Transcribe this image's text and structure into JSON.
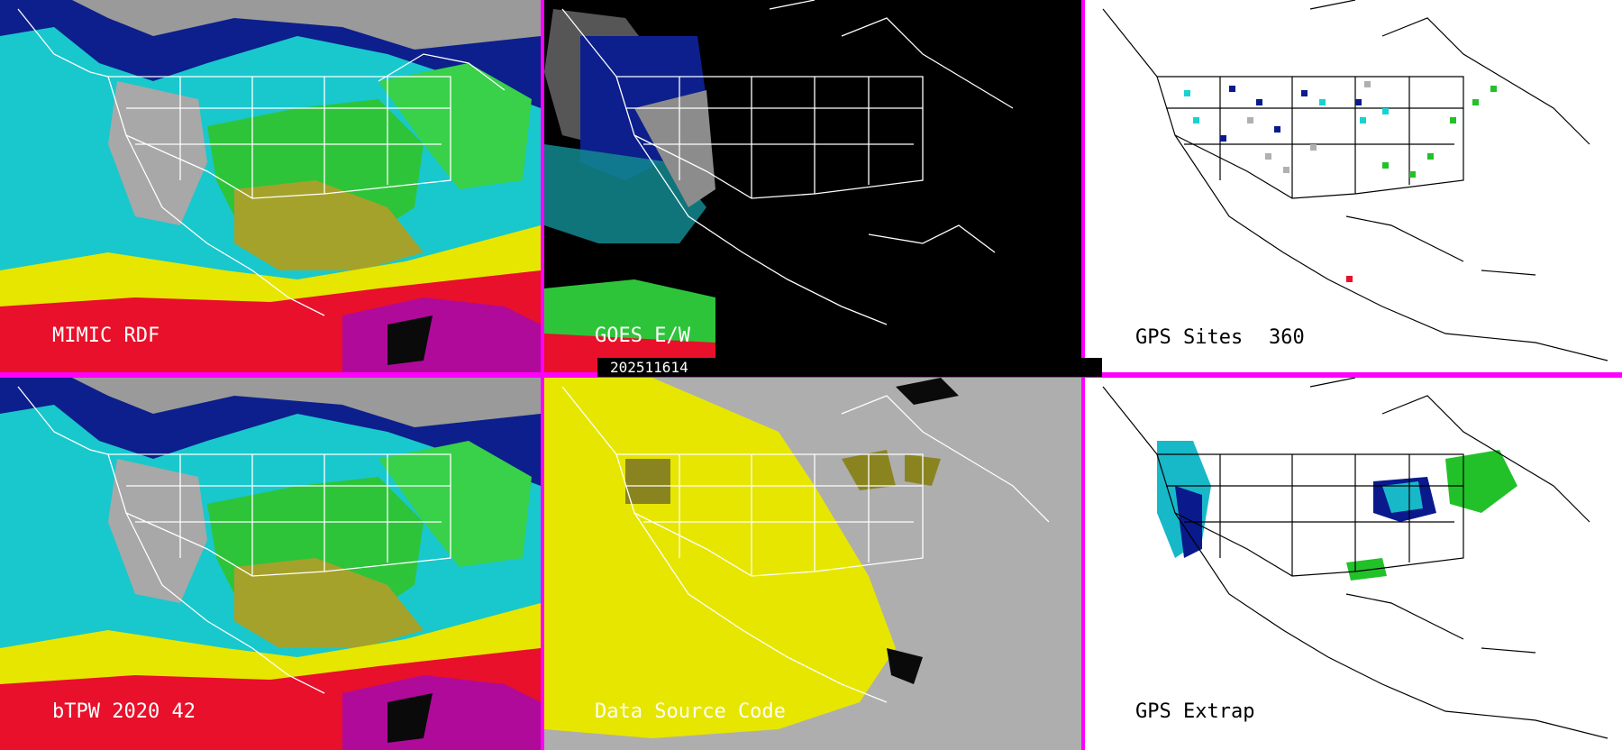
{
  "panels": {
    "mimic": {
      "label": "MIMIC RDF"
    },
    "goes": {
      "label": "GOES E/W"
    },
    "gps_sites": {
      "label": "GPS Sites",
      "count": "360"
    },
    "btpw": {
      "label": "bTPW 2020 42"
    },
    "data_source": {
      "label": "Data Source Code"
    },
    "gps_extrap": {
      "label": "GPS Extrap"
    }
  },
  "timestamp": "202511614",
  "colors": {
    "divider": "#ff00ff",
    "cyan": "#19d8d8",
    "navy": "#0a1a8c",
    "green": "#22c12a",
    "yellow": "#e6e600",
    "red": "#e8102a",
    "gray": "#b0b0b0",
    "olive": "#8a8420"
  }
}
